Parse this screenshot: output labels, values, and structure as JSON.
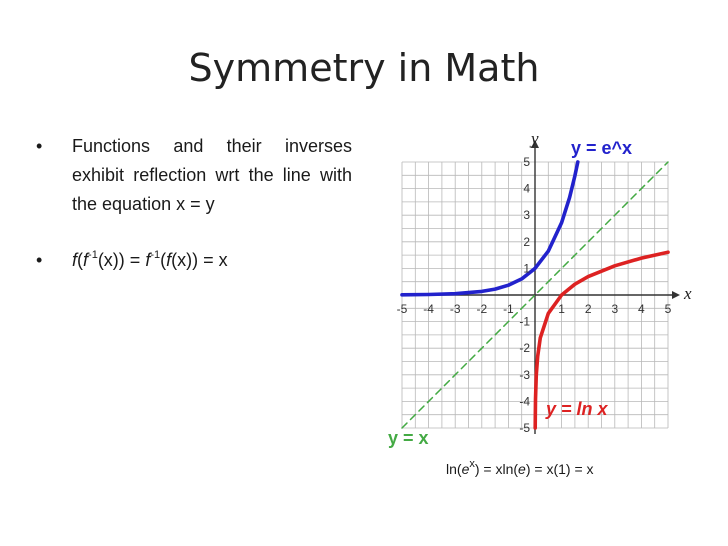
{
  "slide": {
    "title": "Symmetry in Math",
    "bullet1": "Functions and their inverses exhibit reflection wrt the line with the equation x = y",
    "bullet2_parts": [
      "f",
      "(",
      "f",
      "-1",
      "(x)) = ",
      "f",
      "-1",
      "(",
      "f",
      "(x)) = x"
    ],
    "caption_parts": [
      "ln(",
      "e",
      "x",
      ") = xln(",
      "e",
      ") = x(1) = x"
    ]
  },
  "chart_data": {
    "type": "line",
    "xlabel": "x",
    "ylabel": "y",
    "xlim": [
      -5,
      5
    ],
    "ylim": [
      -5,
      5
    ],
    "grid": true,
    "x_ticks": [
      "-5",
      "-4",
      "-3",
      "-2",
      "-1",
      "1",
      "2",
      "3",
      "4",
      "5"
    ],
    "y_ticks": [
      "5",
      "4",
      "3",
      "2",
      "1",
      "-1",
      "-2",
      "-3",
      "-4",
      "-5"
    ],
    "series": [
      {
        "name": "y = e^x",
        "color": "#2222cc",
        "x": [
          -5,
          -4,
          -3,
          -2,
          -1.5,
          -1,
          -0.5,
          0,
          0.5,
          1,
          1.3,
          1.5,
          1.61
        ],
        "y": [
          0.007,
          0.018,
          0.05,
          0.135,
          0.223,
          0.368,
          0.607,
          1,
          1.649,
          2.718,
          3.669,
          4.482,
          5.0
        ]
      },
      {
        "name": "y = ln x",
        "color": "#dd2222",
        "x": [
          0.0067,
          0.01,
          0.02,
          0.05,
          0.1,
          0.2,
          0.5,
          1,
          1.5,
          2,
          3,
          4,
          5
        ],
        "y": [
          -5.0,
          -4.605,
          -3.912,
          -2.996,
          -2.303,
          -1.609,
          -0.693,
          0,
          0.405,
          0.693,
          1.099,
          1.386,
          1.609
        ]
      },
      {
        "name": "y = x",
        "color": "#44aa44",
        "x": [
          -5,
          5
        ],
        "y": [
          -5,
          5
        ]
      }
    ]
  }
}
